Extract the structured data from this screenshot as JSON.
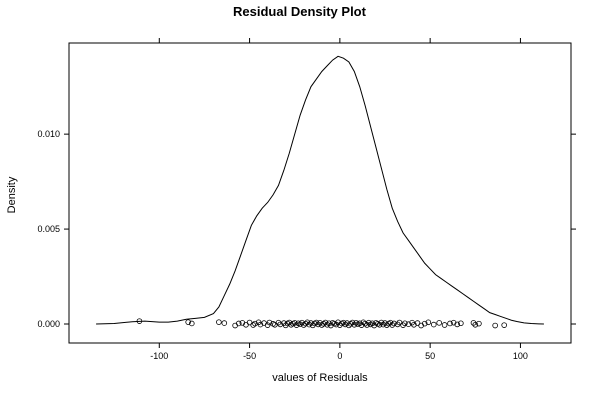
{
  "chart_data": {
    "type": "line",
    "title": "Residual Density Plot",
    "xlabel": "values of Residuals",
    "ylabel": "Density",
    "xlim": [
      -150,
      128
    ],
    "ylim": [
      -0.001,
      0.0148
    ],
    "x_ticks": [
      -100,
      -50,
      0,
      50,
      100
    ],
    "x_tick_labels": [
      "-100",
      "-50",
      "0",
      "50",
      "100"
    ],
    "y_ticks": [
      0.0,
      0.005,
      0.01
    ],
    "y_tick_labels": [
      "0.000",
      "0.005",
      "0.010"
    ],
    "grid": false,
    "series": [
      {
        "kind": "density-line",
        "x": [
          -135,
          -125,
          -115,
          -108,
          -100,
          -95,
          -90,
          -85,
          -80,
          -75,
          -70,
          -67,
          -64,
          -61,
          -58,
          -55,
          -52,
          -49,
          -46,
          -43,
          -40,
          -37,
          -34,
          -31,
          -28,
          -25,
          -22,
          -19,
          -16,
          -13,
          -10,
          -7,
          -4,
          -1,
          2,
          5,
          8,
          11,
          14,
          17,
          20,
          23,
          26,
          29,
          32,
          35,
          38,
          41,
          44,
          47,
          50,
          53,
          56,
          59,
          62,
          65,
          68,
          71,
          74,
          77,
          80,
          83,
          86,
          89,
          92,
          95,
          98,
          102,
          106,
          110,
          113
        ],
        "y": [
          0.0,
          3e-05,
          0.00012,
          0.00015,
          0.0001,
          0.0001,
          0.00015,
          0.00025,
          0.0003,
          0.00035,
          0.00055,
          0.0009,
          0.0015,
          0.0021,
          0.0028,
          0.0036,
          0.0044,
          0.0052,
          0.0057,
          0.0061,
          0.0064,
          0.0068,
          0.0073,
          0.0081,
          0.009,
          0.01,
          0.011,
          0.0118,
          0.0125,
          0.0129,
          0.0133,
          0.0136,
          0.0139,
          0.0141,
          0.014,
          0.0138,
          0.0133,
          0.0125,
          0.0115,
          0.0104,
          0.0093,
          0.0082,
          0.0071,
          0.0061,
          0.0054,
          0.0048,
          0.0044,
          0.004,
          0.0036,
          0.0032,
          0.0029,
          0.0026,
          0.0024,
          0.0022,
          0.002,
          0.0018,
          0.0016,
          0.0014,
          0.0012,
          0.001,
          0.0008,
          0.0006,
          0.0005,
          0.0004,
          0.0003,
          0.0002,
          0.00013,
          6e-05,
          3e-05,
          1e-05,
          0.0
        ]
      },
      {
        "kind": "residual-points",
        "x": [
          -111,
          -84,
          -82,
          -67,
          -64,
          -58,
          -56,
          -54,
          -52,
          -50,
          -48,
          -47,
          -45,
          -44,
          -42,
          -40,
          -39,
          -37,
          -36,
          -34,
          -33,
          -31,
          -30,
          -29,
          -28,
          -27,
          -26,
          -25,
          -24,
          -23,
          -22,
          -21,
          -20,
          -19,
          -18,
          -17,
          -16,
          -15,
          -14,
          -13,
          -12,
          -11,
          -10,
          -9,
          -8,
          -7,
          -6,
          -5,
          -4,
          -3,
          -2,
          -1,
          0,
          1,
          2,
          3,
          4,
          5,
          6,
          7,
          8,
          9,
          10,
          11,
          12,
          13,
          14,
          15,
          16,
          17,
          18,
          19,
          20,
          21,
          22,
          23,
          24,
          25,
          26,
          27,
          28,
          29,
          30,
          32,
          33,
          35,
          36,
          38,
          40,
          41,
          43,
          45,
          47,
          49,
          52,
          55,
          58,
          61,
          63,
          65,
          67,
          74,
          75,
          77,
          86,
          91
        ],
        "y": [
          0.00015,
          0.0001,
          3e-05,
          0.0001,
          5e-05,
          -8e-05,
          3e-05,
          6e-05,
          -4e-05,
          8e-05,
          -5e-05,
          2e-05,
          9e-05,
          -3e-05,
          5e-05,
          -6e-05,
          8e-05,
          1e-05,
          -4e-05,
          7e-05,
          -2e-05,
          5e-05,
          -7e-05,
          3e-05,
          8e-05,
          -4e-05,
          2e-05,
          6e-05,
          -6e-05,
          4e-05,
          -1e-05,
          7e-05,
          -5e-05,
          2e-05,
          9e-05,
          -3e-05,
          5e-05,
          -7e-05,
          3e-05,
          8e-05,
          -2e-05,
          6e-05,
          -5e-05,
          1e-05,
          8e-05,
          -4e-05,
          4e-05,
          -8e-05,
          6e-05,
          2e-05,
          -3e-05,
          9e-05,
          -6e-05,
          3e-05,
          7e-05,
          -2e-05,
          5e-05,
          -7e-05,
          1e-05,
          8e-05,
          -4e-05,
          6e-05,
          -1e-05,
          4e-05,
          -6e-05,
          9e-05,
          2e-05,
          -5e-05,
          7e-05,
          -2e-05,
          4e-05,
          -8e-05,
          6e-05,
          1e-05,
          -4e-05,
          8e-05,
          -3e-05,
          5e-05,
          -6e-05,
          2e-05,
          7e-05,
          -5e-05,
          3e-05,
          -2e-05,
          8e-05,
          -6e-05,
          4e-05,
          -1e-05,
          7e-05,
          -4e-05,
          5e-05,
          -8e-05,
          2e-05,
          9e-05,
          -3e-05,
          6e-05,
          -5e-05,
          3e-05,
          7e-05,
          -2e-05,
          4e-05,
          6e-05,
          -4e-05,
          2e-05,
          -8e-05,
          -6e-05
        ]
      }
    ]
  }
}
